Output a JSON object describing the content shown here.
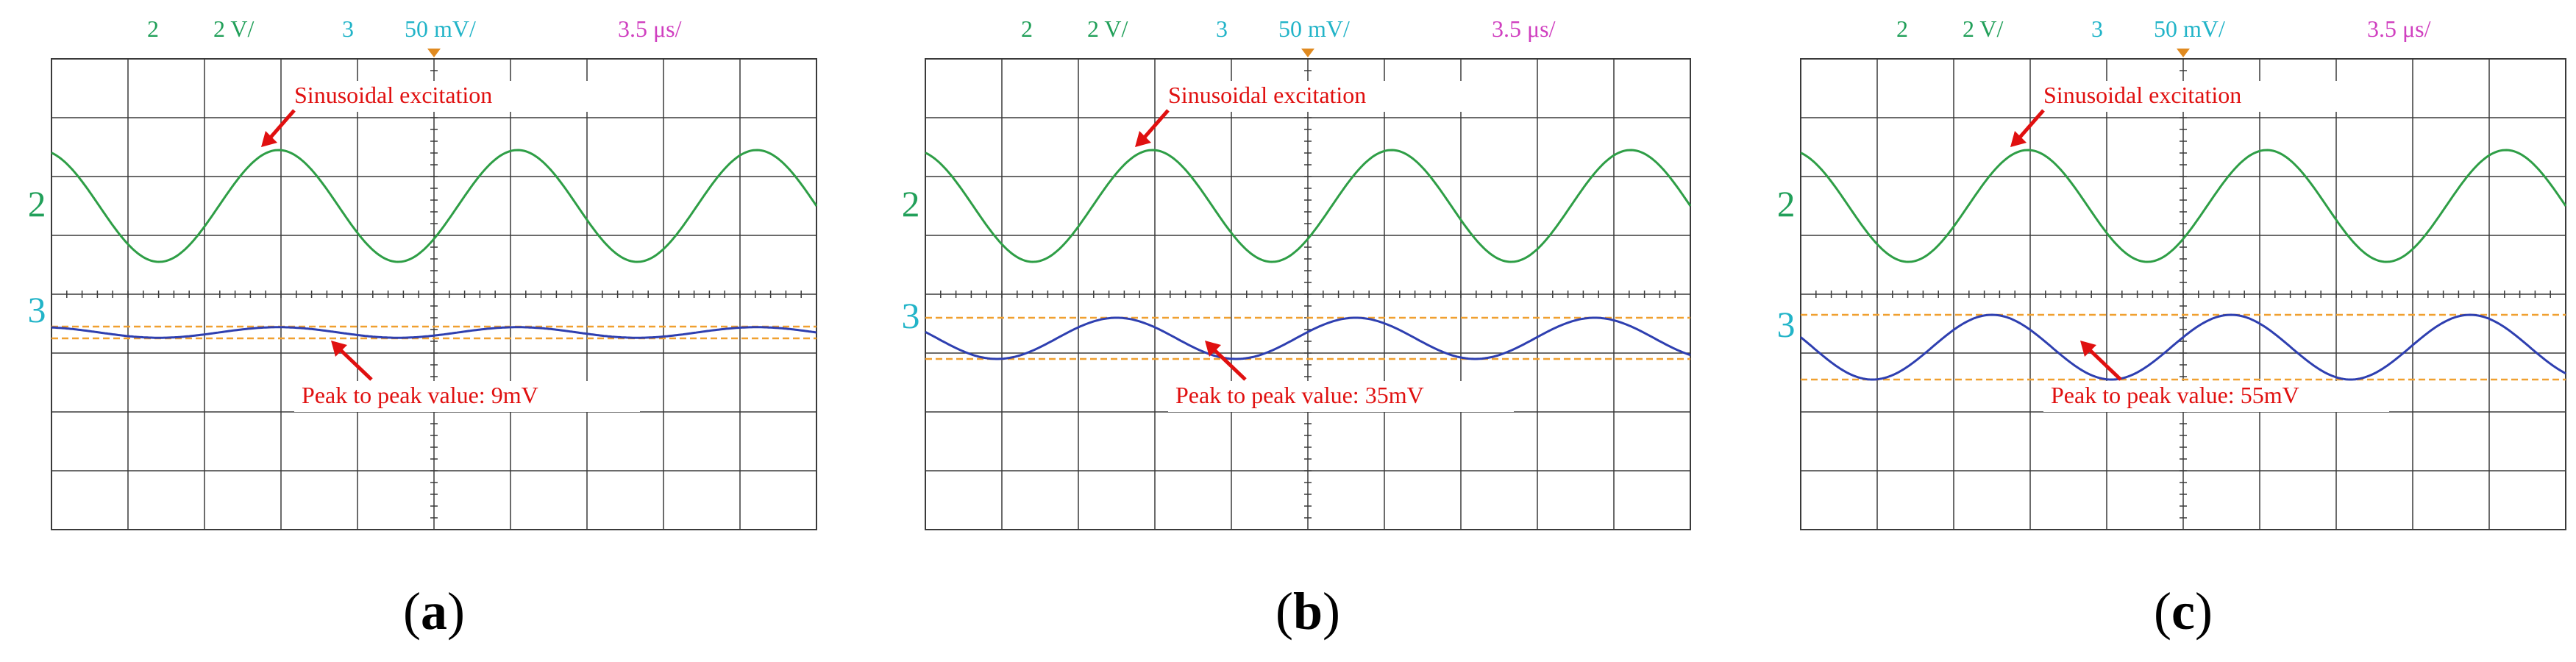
{
  "chart_data": [
    {
      "type": "line",
      "panel_label": "a",
      "header": {
        "ch2": "2",
        "ch2_scale": "2 V/",
        "ch3": "3",
        "ch3_scale": "50 mV/",
        "timebase": "3.5",
        "timebase_unit": "μs/"
      },
      "channel_labels": [
        "2",
        "3"
      ],
      "colors": {
        "ch2": "#2e9e46",
        "ch3": "#2e3fb0",
        "cursor": "#f0a030",
        "grid": "#3a3a3a",
        "annotation": "#e01010",
        "header_green": "#22a05a",
        "header_cyan": "#22b4c8",
        "header_magenta": "#d040c0"
      },
      "annotations": {
        "excitation": "Sinusoidal excitation",
        "peak": "Peak to peak value: 9mV"
      },
      "grid": {
        "divisions_x": 10,
        "divisions_y": 8
      },
      "series": [
        {
          "channel": "2",
          "center_div": 1.5,
          "amplitude_div": 0.95,
          "periods": 3.2,
          "phase": 0.3
        },
        {
          "channel": "3",
          "center_div": -0.65,
          "amplitude_div": 0.09,
          "periods": 3.2,
          "phase": 0.3
        }
      ],
      "cursors_div": [
        -0.55,
        -0.75
      ]
    },
    {
      "type": "line",
      "panel_label": "b",
      "header": {
        "ch2": "2",
        "ch2_scale": "2 V/",
        "ch3": "3",
        "ch3_scale": "50 mV/",
        "timebase": "3.5",
        "timebase_unit": "μs/"
      },
      "channel_labels": [
        "2",
        "3"
      ],
      "colors": {
        "ch2": "#2e9e46",
        "ch3": "#2e3fb0",
        "cursor": "#f0a030",
        "grid": "#3a3a3a",
        "annotation": "#e01010",
        "header_green": "#22a05a",
        "header_cyan": "#22b4c8",
        "header_magenta": "#d040c0"
      },
      "annotations": {
        "excitation": "Sinusoidal excitation",
        "peak": "Peak to peak value: 35mV"
      },
      "grid": {
        "divisions_x": 10,
        "divisions_y": 8
      },
      "series": [
        {
          "channel": "2",
          "center_div": 1.5,
          "amplitude_div": 0.95,
          "periods": 3.2,
          "phase": 0.3
        },
        {
          "channel": "3",
          "center_div": -0.75,
          "amplitude_div": 0.35,
          "periods": 3.2,
          "phase": 0.45
        }
      ],
      "cursors_div": [
        -0.4,
        -1.1
      ]
    },
    {
      "type": "line",
      "panel_label": "c",
      "header": {
        "ch2": "2",
        "ch2_scale": "2 V/",
        "ch3": "3",
        "ch3_scale": "50 mV/",
        "timebase": "3.5",
        "timebase_unit": "μs/"
      },
      "channel_labels": [
        "2",
        "3"
      ],
      "colors": {
        "ch2": "#2e9e46",
        "ch3": "#2e3fb0",
        "cursor": "#f0a030",
        "grid": "#3a3a3a",
        "annotation": "#e01010",
        "header_green": "#22a05a",
        "header_cyan": "#22b4c8",
        "header_magenta": "#d040c0"
      },
      "annotations": {
        "excitation": "Sinusoidal excitation",
        "peak": "Peak to peak value: 55mV"
      },
      "grid": {
        "divisions_x": 10,
        "divisions_y": 8
      },
      "series": [
        {
          "channel": "2",
          "center_div": 1.5,
          "amplitude_div": 0.95,
          "periods": 3.2,
          "phase": 0.3
        },
        {
          "channel": "3",
          "center_div": -0.9,
          "amplitude_div": 0.55,
          "periods": 3.2,
          "phase": 0.45
        }
      ],
      "cursors_div": [
        -0.35,
        -1.45
      ]
    }
  ]
}
